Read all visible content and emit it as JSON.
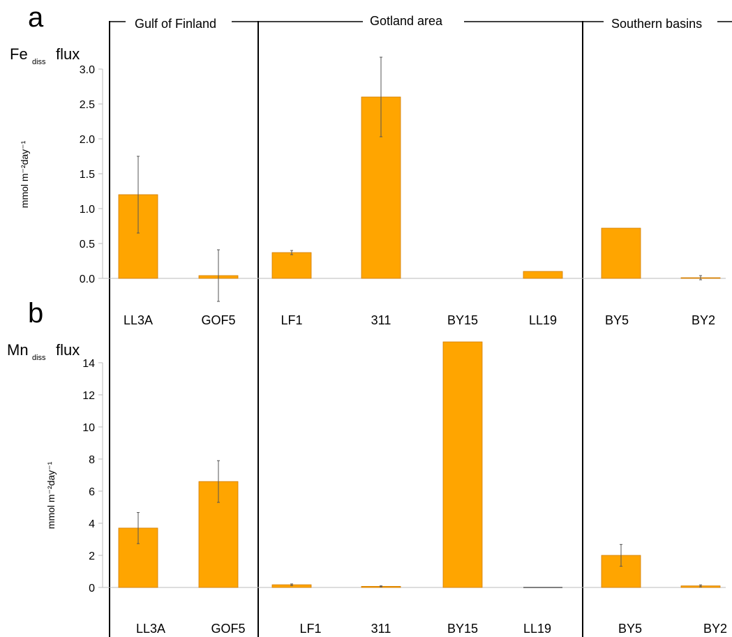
{
  "regions": [
    {
      "label": "Gulf of Finland"
    },
    {
      "label": "Gotland area"
    },
    {
      "label": "Southern basins"
    }
  ],
  "chart_data": [
    {
      "panel": "a",
      "type": "bar",
      "title_main": "Fe",
      "title_sub": "diss",
      "title_tail": "flux",
      "ylabel": "mmol m⁻²day⁻¹",
      "ylim": [
        0,
        3.0
      ],
      "yticks": [
        "0.0",
        "0.5",
        "1.0",
        "1.5",
        "2.0",
        "2.5",
        "3.0"
      ],
      "ytick_values": [
        0,
        0.5,
        1.0,
        1.5,
        2.0,
        2.5,
        3.0
      ],
      "bar_color": "#FFA500",
      "categories": [
        "LL3A",
        "GOF5",
        "LF1",
        "311",
        "BY15",
        "LL19",
        "BY5",
        "BY2"
      ],
      "values": [
        1.2,
        0.04,
        0.37,
        2.6,
        0,
        0.1,
        0.72,
        0.01
      ],
      "errors": [
        0.55,
        0.37,
        0.03,
        0.57,
        0,
        0,
        0,
        0.03
      ]
    },
    {
      "panel": "b",
      "type": "bar",
      "title_main": "Mn",
      "title_sub": "diss",
      "title_tail": "flux",
      "ylabel": "mmol m⁻²day⁻¹",
      "ylim": [
        0,
        15.3
      ],
      "yticks": [
        "0",
        "2",
        "4",
        "6",
        "8",
        "10",
        "12",
        "14"
      ],
      "ytick_values": [
        0,
        2,
        4,
        6,
        8,
        10,
        12,
        14
      ],
      "bar_color": "#FFA500",
      "categories": [
        "LL3A",
        "GOF5",
        "LF1",
        "311",
        "BY15",
        "LL19",
        "BY5",
        "BY2"
      ],
      "values": [
        3.7,
        6.6,
        0.17,
        0.07,
        15.3,
        0.02,
        2.0,
        0.1
      ],
      "errors": [
        0.97,
        1.3,
        0.05,
        0.03,
        0,
        0,
        0.68,
        0.06
      ]
    }
  ]
}
